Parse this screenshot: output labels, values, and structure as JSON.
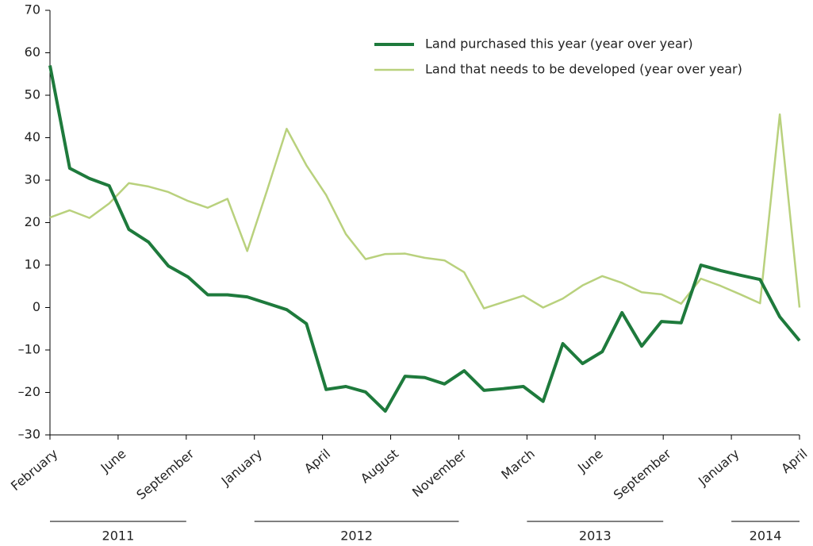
{
  "chart_data": {
    "type": "line",
    "x_tick_labels": [
      "February",
      "June",
      "September",
      "January",
      "April",
      "August",
      "November",
      "March",
      "June",
      "September",
      "January",
      "April"
    ],
    "year_groups": [
      {
        "label": "2011",
        "ticks": [
          0,
          2
        ]
      },
      {
        "label": "2012",
        "ticks": [
          3,
          6
        ]
      },
      {
        "label": "2013",
        "ticks": [
          7,
          9
        ]
      },
      {
        "label": "2014",
        "ticks": [
          10,
          11
        ]
      }
    ],
    "series": [
      {
        "name": "Land purchased this year (year over year)",
        "color": "#1e7a3c",
        "values": [
          57,
          32.8,
          30.4,
          28.7,
          18.4,
          15.4,
          9.8,
          7.2,
          3.0,
          3.0,
          2.5,
          1.0,
          -0.5,
          -3.8,
          -19.3,
          -18.6,
          -19.9,
          -24.4,
          -16.2,
          -16.5,
          -18.0,
          -14.9,
          -19.5,
          -19.1,
          -18.6,
          -22.1,
          -8.5,
          -13.2,
          -10.4,
          -1.2,
          -9.1,
          -3.3,
          -3.6,
          10.0,
          8.7,
          7.6,
          6.6,
          -2.2,
          -7.8
        ]
      },
      {
        "name": "Land that needs to be developed (year over year)",
        "color": "#b9d17d",
        "values": [
          21.2,
          22.9,
          21.1,
          24.5,
          29.3,
          28.5,
          27.2,
          25.1,
          23.5,
          25.6,
          13.3,
          27.5,
          42.1,
          33.5,
          26.5,
          17.3,
          11.4,
          12.6,
          12.7,
          11.7,
          11.1,
          8.3,
          -0.2,
          1.3,
          2.8,
          0,
          2.1,
          5.2,
          7.4,
          5.8,
          3.6,
          3.1,
          0.9,
          6.8,
          5.1,
          3.1,
          1.0,
          45.5,
          0
        ]
      }
    ],
    "ylim": [
      -30,
      70
    ],
    "yticks": [
      {
        "value": -30,
        "label": "–30"
      },
      {
        "value": -20,
        "label": "–20"
      },
      {
        "value": -10,
        "label": "–10"
      },
      0,
      10,
      20,
      30,
      40,
      50,
      60,
      70
    ],
    "grid": false,
    "legend": "top-right"
  }
}
